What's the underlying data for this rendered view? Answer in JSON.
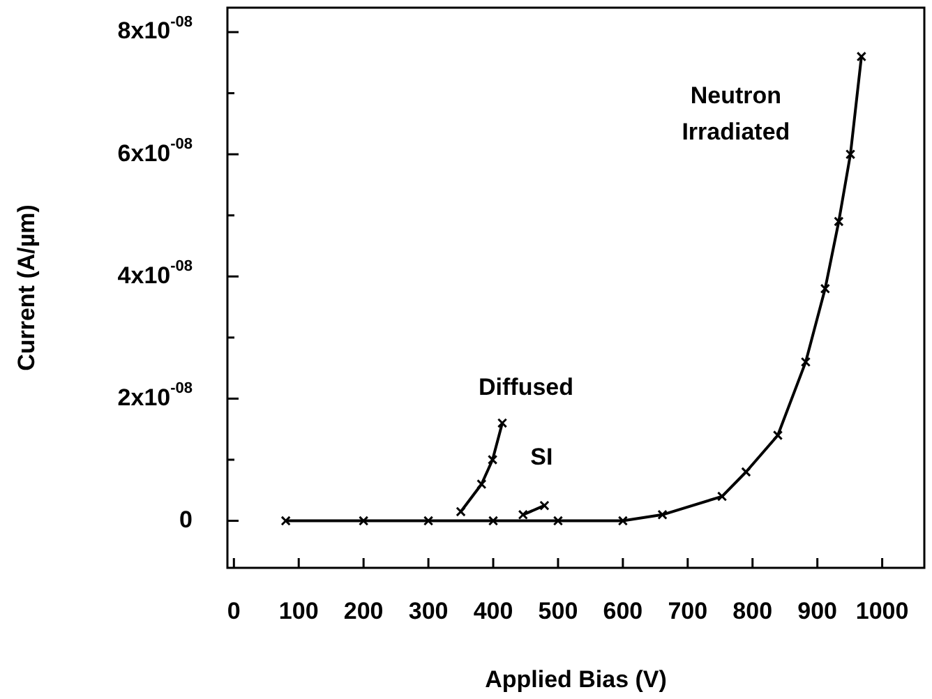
{
  "chart_data": {
    "type": "line",
    "xlabel": "Applied Bias (V)",
    "ylabel": "Current (A/µm)",
    "xlim": [
      -10,
      1065
    ],
    "ylim": [
      -7.7e-09,
      8.4e-08
    ],
    "xticks": [
      0,
      100,
      200,
      300,
      400,
      500,
      600,
      700,
      800,
      900,
      1000
    ],
    "yticks": [
      {
        "value": 0,
        "label": "0"
      },
      {
        "value": 1e-08,
        "label": null
      },
      {
        "value": 2e-08,
        "label": "2x10$^{-08}$"
      },
      {
        "value": 3e-08,
        "label": null
      },
      {
        "value": 4e-08,
        "label": "4x10$^{-08}$"
      },
      {
        "value": 5e-08,
        "label": null
      },
      {
        "value": 6e-08,
        "label": "6x10$^{-08}$"
      },
      {
        "value": 7e-08,
        "label": null
      },
      {
        "value": 8e-08,
        "label": "8x10$^{-08}$"
      }
    ],
    "series": [
      {
        "name": "Neutron\nIrradiated",
        "color": "#000000",
        "x": [
          80,
          200,
          300,
          400,
          500,
          600,
          661,
          753,
          790,
          839,
          882,
          912,
          933,
          951,
          968
        ],
        "values": [
          0,
          0,
          0,
          0,
          0,
          0,
          1e-09,
          4e-09,
          8e-09,
          1.4e-08,
          2.6e-08,
          3.8e-08,
          4.9e-08,
          6e-08,
          7.6e-08
        ]
      },
      {
        "name": "Diffused",
        "color": "#000000",
        "x": [
          350,
          382,
          399,
          414
        ],
        "values": [
          1.5e-09,
          6e-09,
          1e-08,
          1.6e-08
        ]
      },
      {
        "name": "SI",
        "color": "#000000",
        "x": [
          446,
          479
        ],
        "values": [
          1e-09,
          2.5e-09
        ]
      }
    ],
    "marker": "cross",
    "line_style": "solid",
    "grid": false,
    "legend": false
  }
}
